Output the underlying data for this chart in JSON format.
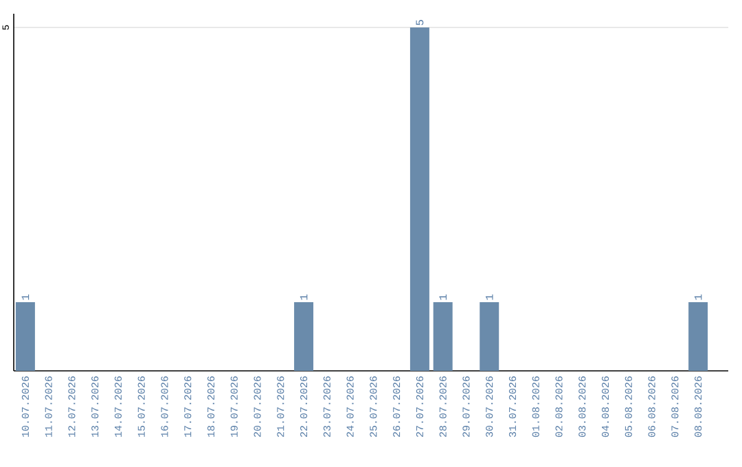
{
  "chart_data": {
    "type": "bar",
    "categories": [
      "10.07.2026",
      "11.07.2026",
      "12.07.2026",
      "13.07.2026",
      "14.07.2026",
      "15.07.2026",
      "16.07.2026",
      "17.07.2026",
      "18.07.2026",
      "19.07.2026",
      "20.07.2026",
      "21.07.2026",
      "22.07.2026",
      "23.07.2026",
      "24.07.2026",
      "25.07.2026",
      "26.07.2026",
      "27.07.2026",
      "28.07.2026",
      "29.07.2026",
      "30.07.2026",
      "31.07.2026",
      "01.08.2026",
      "02.08.2026",
      "03.08.2026",
      "04.08.2026",
      "05.08.2026",
      "06.08.2026",
      "07.08.2026",
      "08.08.2026"
    ],
    "values": [
      1,
      0,
      0,
      0,
      0,
      0,
      0,
      0,
      0,
      0,
      0,
      0,
      1,
      0,
      0,
      0,
      0,
      5,
      1,
      0,
      1,
      0,
      0,
      0,
      0,
      0,
      0,
      0,
      0,
      1
    ],
    "value_labels": [
      "1",
      null,
      null,
      null,
      null,
      null,
      null,
      null,
      null,
      null,
      null,
      null,
      "1",
      null,
      null,
      null,
      null,
      "5",
      "1",
      null,
      "1",
      null,
      null,
      null,
      null,
      null,
      null,
      null,
      null,
      "1"
    ],
    "color": "#6a8bab",
    "ylim": [
      0,
      5.2
    ],
    "yticks": [
      5
    ],
    "grid": "y"
  }
}
